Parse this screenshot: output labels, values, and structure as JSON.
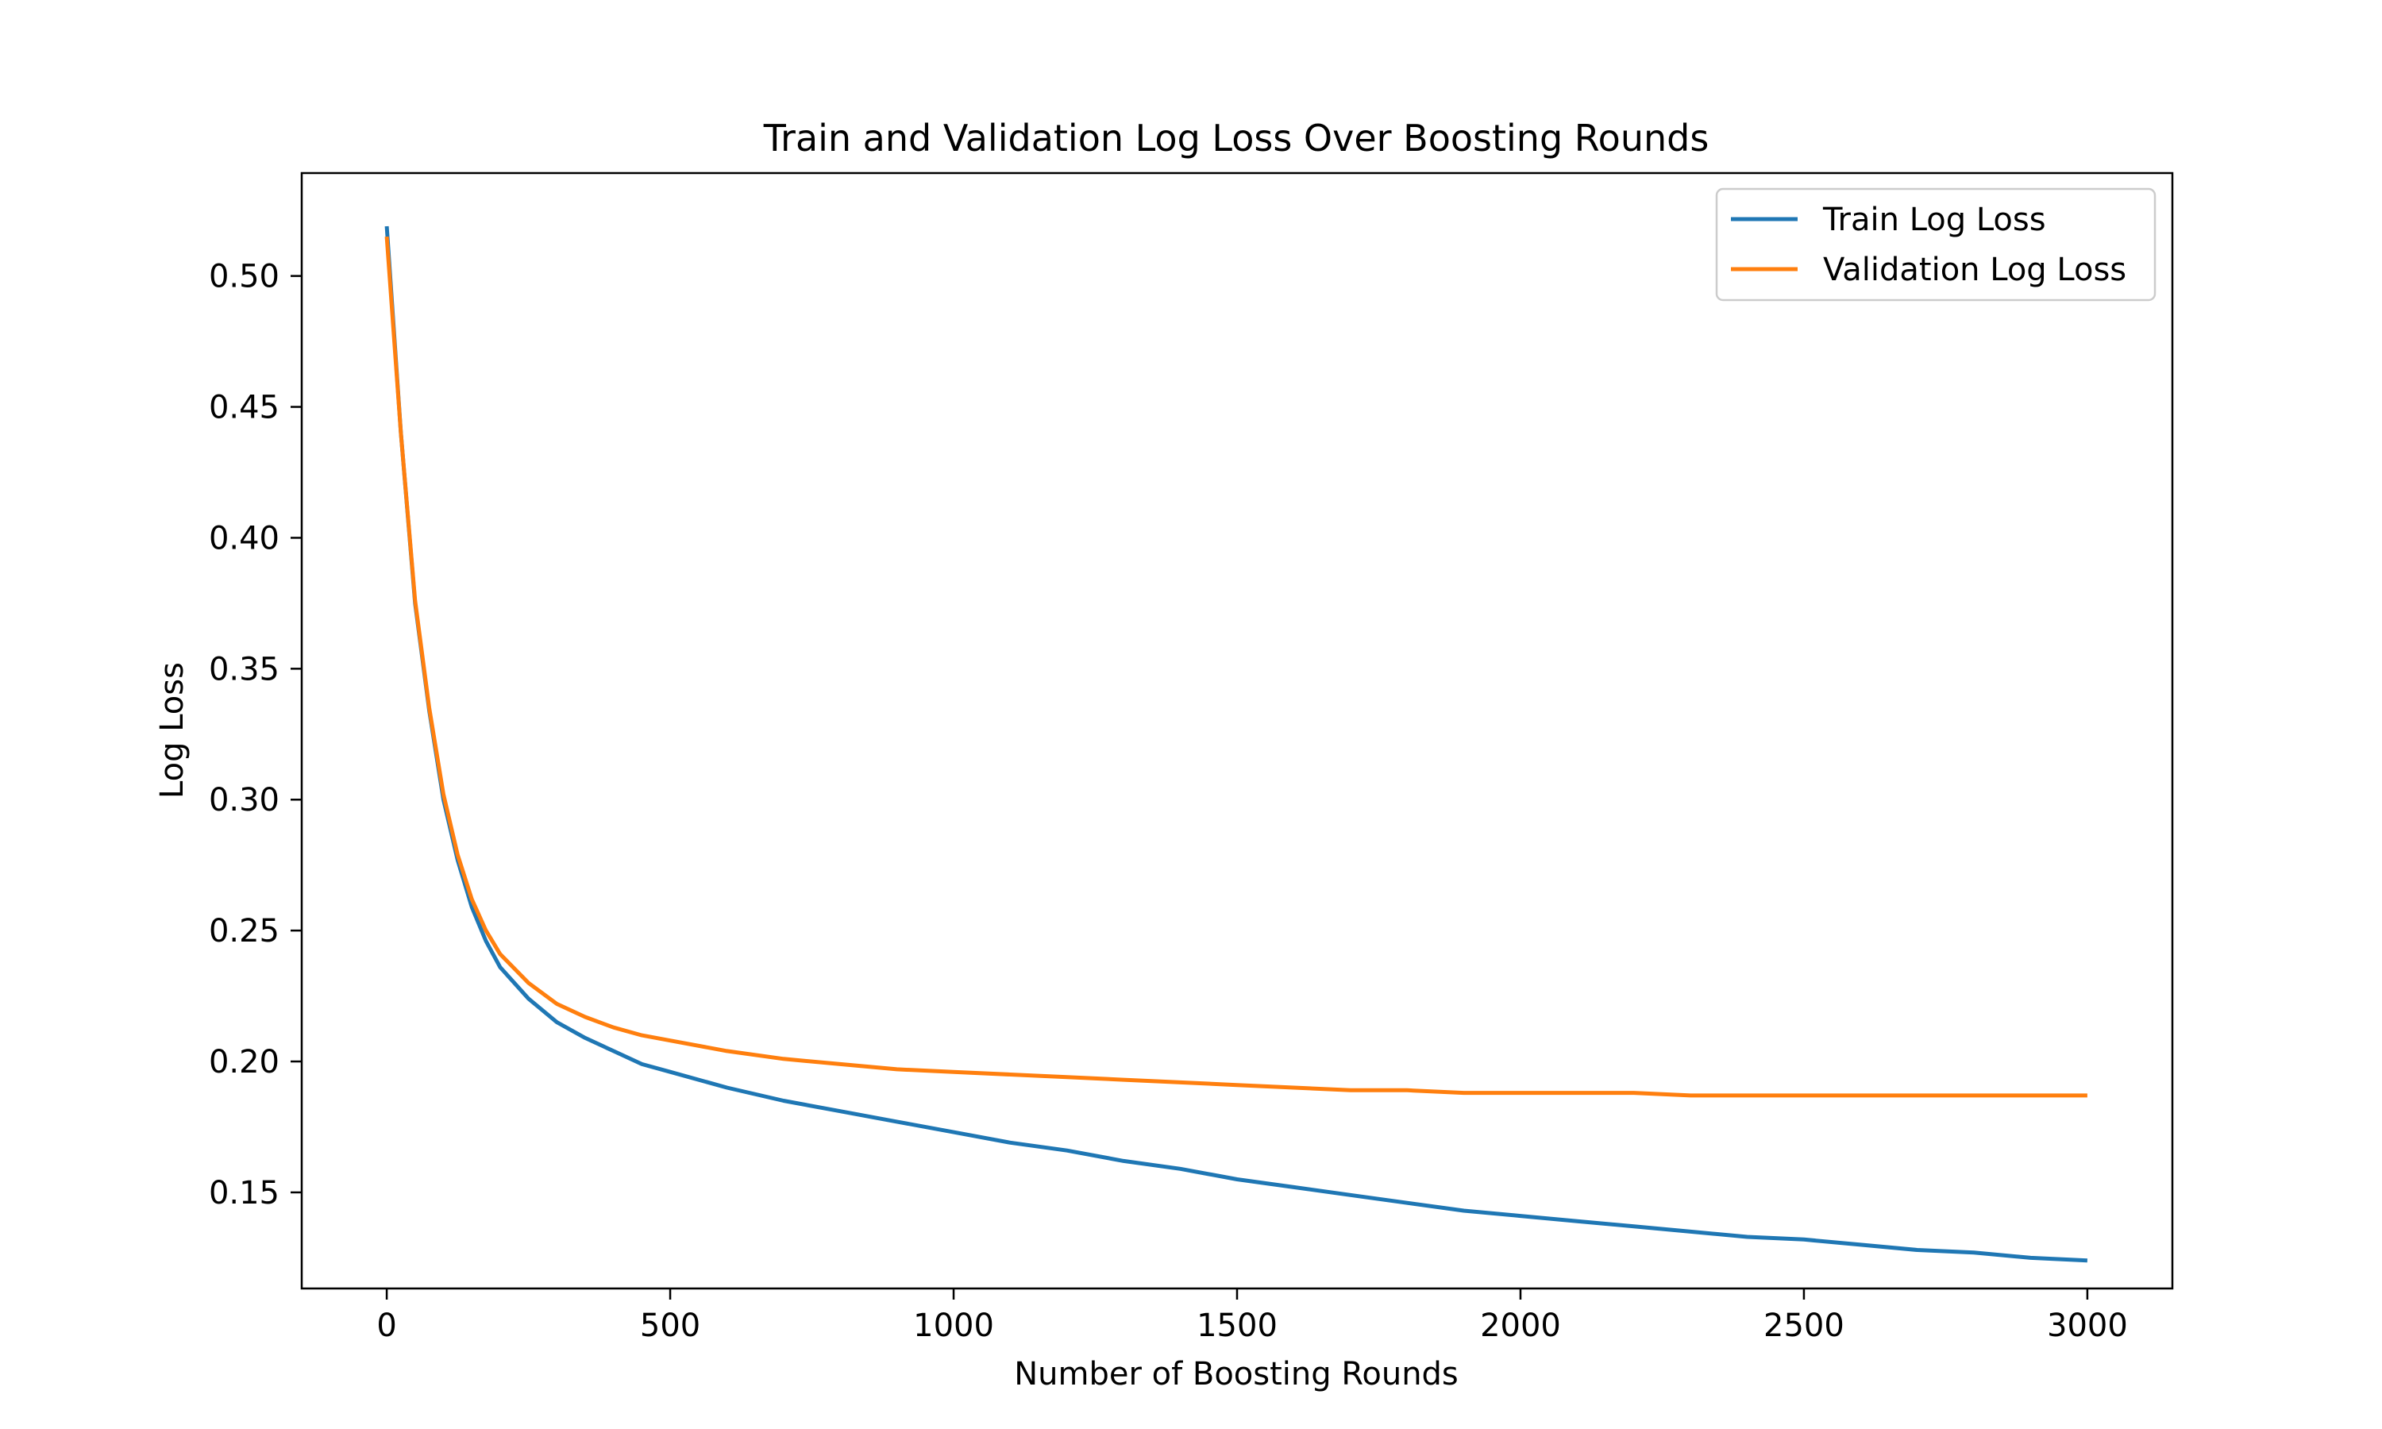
{
  "chart_data": {
    "type": "line",
    "title": "Train and Validation Log Loss Over Boosting Rounds",
    "xlabel": "Number of Boosting Rounds",
    "ylabel": "Log Loss",
    "xlim": [
      -150,
      3150
    ],
    "ylim": [
      0.1133,
      0.5393
    ],
    "xticks": [
      0,
      500,
      1000,
      1500,
      2000,
      2500,
      3000
    ],
    "xtick_labels": [
      "0",
      "500",
      "1000",
      "1500",
      "2000",
      "2500",
      "3000"
    ],
    "yticks": [
      0.15,
      0.2,
      0.25,
      0.3,
      0.35,
      0.4,
      0.45,
      0.5
    ],
    "ytick_labels": [
      "0.15",
      "0.20",
      "0.25",
      "0.30",
      "0.35",
      "0.40",
      "0.45",
      "0.50"
    ],
    "grid": false,
    "legend_position": "top-right",
    "series": [
      {
        "name": "Train Log Loss",
        "color": "#1f77b4",
        "x": [
          0,
          25,
          50,
          75,
          100,
          125,
          150,
          175,
          200,
          250,
          300,
          350,
          400,
          450,
          500,
          600,
          700,
          800,
          900,
          1000,
          1100,
          1200,
          1300,
          1400,
          1500,
          1600,
          1700,
          1800,
          1900,
          2000,
          2100,
          2200,
          2300,
          2400,
          2500,
          2600,
          2700,
          2800,
          2900,
          3000
        ],
        "y": [
          0.519,
          0.44,
          0.375,
          0.334,
          0.3,
          0.277,
          0.259,
          0.246,
          0.236,
          0.224,
          0.215,
          0.209,
          0.204,
          0.199,
          0.196,
          0.19,
          0.185,
          0.181,
          0.177,
          0.173,
          0.169,
          0.166,
          0.162,
          0.159,
          0.155,
          0.152,
          0.149,
          0.146,
          0.143,
          0.141,
          0.139,
          0.137,
          0.135,
          0.133,
          0.132,
          0.13,
          0.128,
          0.127,
          0.125,
          0.124
        ]
      },
      {
        "name": "Validation Log Loss",
        "color": "#ff7f0e",
        "x": [
          0,
          25,
          50,
          75,
          100,
          125,
          150,
          175,
          200,
          250,
          300,
          350,
          400,
          450,
          500,
          600,
          700,
          800,
          900,
          1000,
          1100,
          1200,
          1300,
          1400,
          1500,
          1600,
          1700,
          1800,
          1900,
          2000,
          2100,
          2200,
          2300,
          2400,
          2500,
          2600,
          2700,
          2800,
          2900,
          3000
        ],
        "y": [
          0.515,
          0.44,
          0.376,
          0.335,
          0.302,
          0.279,
          0.262,
          0.25,
          0.241,
          0.23,
          0.222,
          0.217,
          0.213,
          0.21,
          0.208,
          0.204,
          0.201,
          0.199,
          0.197,
          0.196,
          0.195,
          0.194,
          0.193,
          0.192,
          0.191,
          0.19,
          0.189,
          0.189,
          0.188,
          0.188,
          0.188,
          0.188,
          0.187,
          0.187,
          0.187,
          0.187,
          0.187,
          0.187,
          0.187,
          0.187
        ]
      }
    ]
  }
}
